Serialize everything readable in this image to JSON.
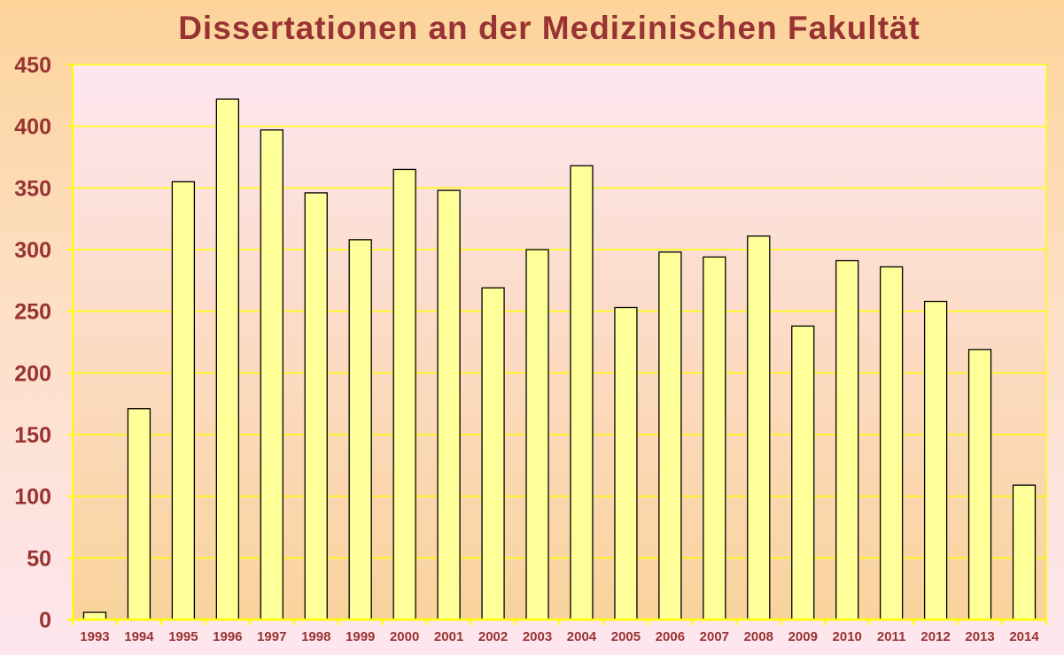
{
  "chart_data": {
    "type": "bar",
    "title": "Dissertationen an der Medizinischen Fakultät",
    "xlabel": "",
    "ylabel": "",
    "categories": [
      "1993",
      "1994",
      "1995",
      "1996",
      "1997",
      "1998",
      "1999",
      "2000",
      "2001",
      "2002",
      "2003",
      "2004",
      "2005",
      "2006",
      "2007",
      "2008",
      "2009",
      "2010",
      "2011",
      "2012",
      "2013",
      "2014"
    ],
    "values": [
      6,
      171,
      355,
      422,
      397,
      346,
      308,
      365,
      348,
      269,
      300,
      368,
      253,
      298,
      294,
      311,
      238,
      291,
      286,
      258,
      219,
      109
    ],
    "ylim": [
      0,
      450
    ],
    "yticks": [
      0,
      50,
      100,
      150,
      200,
      250,
      300,
      350,
      400,
      450
    ],
    "grid": true,
    "legend": "none",
    "colors": {
      "bar": "#ffff99",
      "bar_stroke": "#000000",
      "grid": "#ffff00",
      "text": "#993333"
    }
  }
}
